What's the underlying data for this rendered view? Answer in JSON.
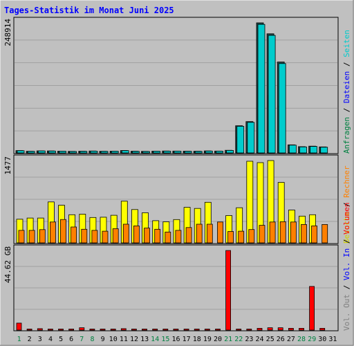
{
  "title": "Tages-Statistik im Monat Juni 2025",
  "colors": {
    "background": "#c0c0c0",
    "title": "#0000ff",
    "gridline": "#a0a0a0",
    "weekday_label": "#000000",
    "weekend_label": "#008040",
    "anfragen": "#008040",
    "dateien": "#0000ff",
    "seiten": "#00cccc",
    "besuche": "#d2d200",
    "rechner": "#ff8000",
    "vol_out": "#808080",
    "vol_in": "#0000ff",
    "volumen": "#ff0000"
  },
  "legend": {
    "top": [
      {
        "text": "Anfragen",
        "color": "#008040"
      },
      {
        "text": " / ",
        "color": "#000000"
      },
      {
        "text": "Dateien",
        "color": "#0000ff"
      },
      {
        "text": " / ",
        "color": "#000000"
      },
      {
        "text": "Seiten",
        "color": "#00cccc"
      }
    ],
    "middle": [
      {
        "text": "Besuche",
        "color": "#d2d200"
      },
      {
        "text": " / ",
        "color": "#000000"
      },
      {
        "text": "Rechner",
        "color": "#ff8000"
      }
    ],
    "bottom": [
      {
        "text": "Vol. Out",
        "color": "#808080"
      },
      {
        "text": " / ",
        "color": "#000000"
      },
      {
        "text": "Vol. In",
        "color": "#0000ff"
      },
      {
        "text": " / ",
        "color": "#000000"
      },
      {
        "text": "Volumen",
        "color": "#ff0000"
      }
    ]
  },
  "chart_data": [
    {
      "type": "bar",
      "name": "hits",
      "max_label": "248914",
      "ylim": [
        0,
        248914
      ],
      "x": [
        "1",
        "2",
        "3",
        "4",
        "5",
        "6",
        "7",
        "8",
        "9",
        "10",
        "11",
        "12",
        "13",
        "14",
        "15",
        "16",
        "17",
        "18",
        "19",
        "20",
        "21",
        "22",
        "23",
        "24",
        "25",
        "26",
        "27",
        "28",
        "29",
        "30",
        "31"
      ],
      "weekend_days": [
        1,
        7,
        8,
        14,
        15,
        21,
        22,
        28,
        29
      ],
      "series": [
        {
          "name": "Anfragen",
          "values": [
            4500,
            3200,
            4000,
            3800,
            3500,
            3000,
            3300,
            3700,
            3200,
            3500,
            4700,
            3300,
            3000,
            3500,
            3700,
            3600,
            3400,
            3300,
            3800,
            3600,
            5000,
            52000,
            60000,
            248914,
            228000,
            174000,
            15500,
            12000,
            13000,
            11500,
            0
          ]
        },
        {
          "name": "Dateien",
          "values": [
            3000,
            2200,
            2800,
            2600,
            2400,
            2000,
            2200,
            2500,
            2200,
            2400,
            3200,
            2200,
            2000,
            2400,
            2500,
            2400,
            2300,
            2200,
            2600,
            2400,
            3500,
            30000,
            35000,
            130000,
            110000,
            90000,
            10000,
            8000,
            9000,
            7500,
            0
          ]
        },
        {
          "name": "Seiten",
          "values": [
            4200,
            3000,
            3800,
            3600,
            3300,
            2800,
            3100,
            3500,
            3000,
            3300,
            4400,
            3100,
            2800,
            3300,
            3500,
            3400,
            3200,
            3100,
            3600,
            3400,
            4800,
            51000,
            58500,
            246000,
            225000,
            171000,
            15000,
            11500,
            12500,
            11000,
            0
          ]
        }
      ]
    },
    {
      "type": "bar",
      "name": "visits",
      "max_label": "1477",
      "ylim": [
        0,
        1477
      ],
      "x": [
        "1",
        "2",
        "3",
        "4",
        "5",
        "6",
        "7",
        "8",
        "9",
        "10",
        "11",
        "12",
        "13",
        "14",
        "15",
        "16",
        "17",
        "18",
        "19",
        "20",
        "21",
        "22",
        "23",
        "24",
        "25",
        "26",
        "27",
        "28",
        "29",
        "30",
        "31"
      ],
      "series": [
        {
          "name": "Besuche",
          "values": [
            425,
            445,
            445,
            735,
            675,
            505,
            515,
            455,
            460,
            495,
            748,
            598,
            540,
            398,
            378,
            418,
            638,
            618,
            728,
            0,
            490,
            630,
            1465,
            1440,
            1477,
            1085,
            590,
            480,
            505,
            0,
            0
          ]
        },
        {
          "name": "Rechner",
          "values": [
            225,
            225,
            238,
            375,
            420,
            285,
            245,
            225,
            210,
            255,
            335,
            305,
            265,
            245,
            195,
            225,
            275,
            335,
            335,
            375,
            205,
            210,
            240,
            315,
            375,
            380,
            375,
            330,
            305,
            330,
            0
          ]
        }
      ]
    },
    {
      "type": "bar",
      "name": "volume",
      "max_label": "44.62 GB",
      "ylim": [
        0,
        44.62
      ],
      "x": [
        "1",
        "2",
        "3",
        "4",
        "5",
        "6",
        "7",
        "8",
        "9",
        "10",
        "11",
        "12",
        "13",
        "14",
        "15",
        "16",
        "17",
        "18",
        "19",
        "20",
        "21",
        "22",
        "23",
        "24",
        "25",
        "26",
        "27",
        "28",
        "29",
        "30",
        "31"
      ],
      "series": [
        {
          "name": "Volumen",
          "values": [
            3.9,
            0.3,
            0.8,
            0.3,
            0.3,
            0.3,
            1.3,
            0.5,
            0.3,
            0.3,
            0.8,
            0.3,
            0.3,
            0.3,
            0.3,
            0.3,
            0.3,
            0.3,
            0.3,
            0.3,
            44.62,
            0.3,
            0.5,
            1.0,
            1.3,
            1.3,
            1.0,
            1.0,
            24.5,
            1.0,
            0
          ]
        }
      ]
    }
  ]
}
